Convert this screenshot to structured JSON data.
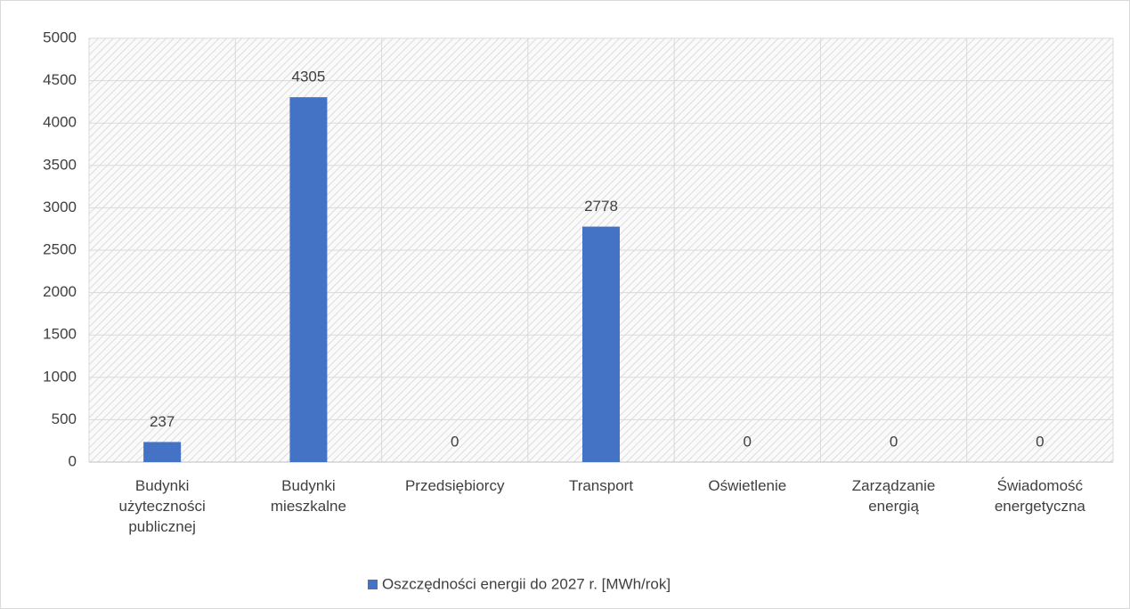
{
  "chart_data": {
    "type": "bar",
    "categories": [
      "Budynki użyteczności publicznej",
      "Budynki mieszkalne",
      "Przedsiębiorcy",
      "Transport",
      "Oświetlenie",
      "Zarządzanie energią",
      "Świadomość energetyczna"
    ],
    "series": [
      {
        "name": "Oszczędności energii do 2027 r. [MWh/rok]",
        "color": "#4472c4",
        "values": [
          237,
          4305,
          0,
          2778,
          0,
          0,
          0
        ]
      }
    ],
    "ylim": [
      0,
      5000
    ],
    "yticks": [
      0,
      500,
      1000,
      1500,
      2000,
      2500,
      3000,
      3500,
      4000,
      4500,
      5000
    ],
    "grid": true,
    "legend": "bottom"
  }
}
